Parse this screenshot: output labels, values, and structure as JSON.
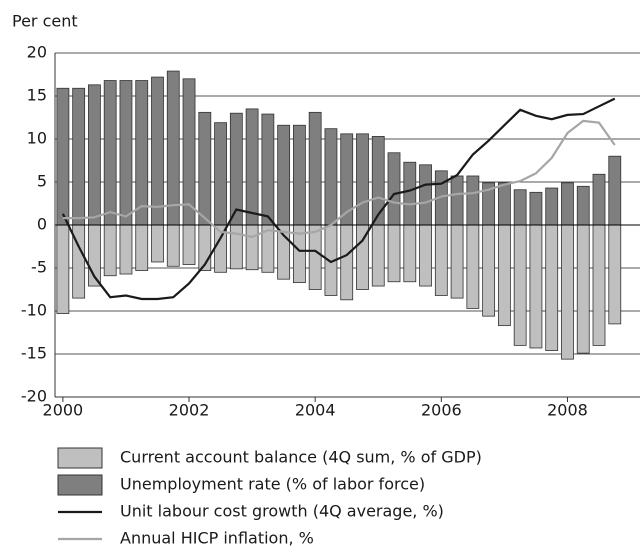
{
  "chart_data": {
    "type": "bar",
    "y_label": "Per cent",
    "x": [
      2000,
      2000.25,
      2000.5,
      2000.75,
      2001,
      2001.25,
      2001.5,
      2001.75,
      2002,
      2002.25,
      2002.5,
      2002.75,
      2003,
      2003.25,
      2003.5,
      2003.75,
      2004,
      2004.25,
      2004.5,
      2004.75,
      2005,
      2005.25,
      2005.5,
      2005.75,
      2006,
      2006.25,
      2006.5,
      2006.75,
      2007,
      2007.25,
      2007.5,
      2007.75,
      2008,
      2008.25,
      2008.5,
      2008.75
    ],
    "xlim": [
      1999.875,
      2009.15
    ],
    "xticks": [
      2000,
      2002,
      2004,
      2006,
      2008
    ],
    "ylim": [
      -20,
      20
    ],
    "yticks": [
      -20,
      -15,
      -10,
      -5,
      0,
      5,
      10,
      15,
      20
    ],
    "grid": true,
    "series": [
      {
        "name": "Current account balance (4Q sum, % of GDP)",
        "type": "bar",
        "color": "#bfbfbf",
        "values": [
          -10.3,
          -8.5,
          -7.1,
          -5.9,
          -5.7,
          -5.3,
          -4.3,
          -4.8,
          -4.6,
          -5.3,
          -5.5,
          -5.1,
          -5.2,
          -5.5,
          -6.3,
          -6.7,
          -7.5,
          -8.2,
          -8.7,
          -7.5,
          -7.1,
          -6.6,
          -6.6,
          -7.1,
          -8.2,
          -8.5,
          -9.7,
          -10.6,
          -11.7,
          -14.0,
          -14.3,
          -14.6,
          -15.6,
          -14.9,
          -14.0,
          -11.5
        ]
      },
      {
        "name": "Unemployment rate (% of labor force)",
        "type": "bar",
        "color": "#7f7f7f",
        "values": [
          15.9,
          15.9,
          16.3,
          16.8,
          16.8,
          16.8,
          17.2,
          17.9,
          17.0,
          13.1,
          11.9,
          13.0,
          13.5,
          12.9,
          11.6,
          11.6,
          13.1,
          11.2,
          10.6,
          10.6,
          10.3,
          8.4,
          7.3,
          7.0,
          6.3,
          5.7,
          5.7,
          4.9,
          4.9,
          4.1,
          3.8,
          4.3,
          4.9,
          4.5,
          5.9,
          8.0
        ]
      },
      {
        "name": "Unit labour cost growth (4Q average, %)",
        "type": "line",
        "color": "#1a1a1a",
        "values": [
          1.3,
          -2.5,
          -6.0,
          -8.4,
          -8.2,
          -8.6,
          -8.6,
          -8.4,
          -6.8,
          -4.6,
          -1.5,
          1.8,
          1.4,
          1.0,
          -1.2,
          -3.0,
          -3.0,
          -4.3,
          -3.5,
          -1.8,
          1.2,
          3.6,
          4.0,
          4.7,
          4.8,
          5.8,
          8.2,
          9.8,
          11.6,
          13.4,
          12.7,
          12.3,
          12.8,
          12.9,
          13.8,
          14.7
        ]
      },
      {
        "name": "Annual HICP inflation, %",
        "type": "line",
        "color": "#a6a6a6",
        "values": [
          0.8,
          0.8,
          0.9,
          1.5,
          1.0,
          2.2,
          2.1,
          2.3,
          2.4,
          0.8,
          -0.8,
          -1.0,
          -1.4,
          -0.6,
          -0.8,
          -1.0,
          -0.8,
          0.0,
          1.5,
          2.6,
          3.2,
          2.6,
          2.4,
          2.6,
          3.3,
          3.6,
          3.7,
          4.1,
          4.7,
          5.1,
          6.0,
          7.8,
          10.7,
          12.1,
          11.9,
          9.3
        ]
      }
    ]
  }
}
